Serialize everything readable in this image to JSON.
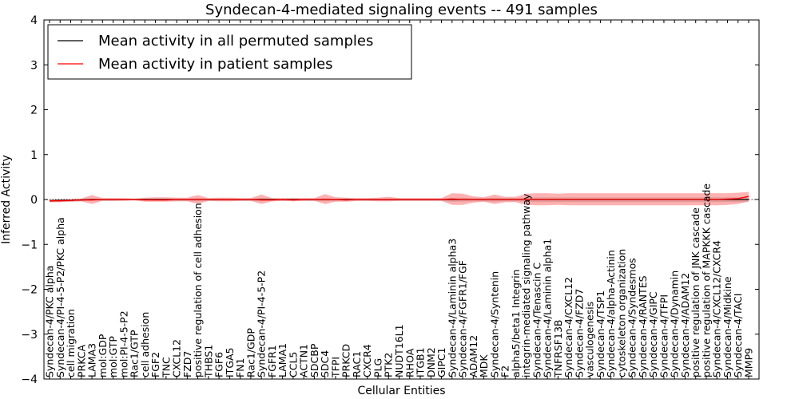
{
  "chart_data": {
    "type": "line",
    "title": "Syndecan-4-mediated signaling events -- 491 samples",
    "xlabel": "Cellular Entities",
    "ylabel": "Inferred Activity",
    "ylim": [
      -4,
      4
    ],
    "yticks": [
      -4,
      -3,
      -2,
      -1,
      0,
      1,
      2,
      3,
      4
    ],
    "ytick_labels": [
      "−4",
      "−3",
      "−2",
      "−1",
      "0",
      "1",
      "2",
      "3",
      "4"
    ],
    "grid": false,
    "legend": {
      "location": "top-left",
      "entries": [
        {
          "label": "Mean activity in all permuted samples",
          "color": "#000000"
        },
        {
          "label": "Mean activity in patient samples",
          "color": "#ff0000"
        }
      ]
    },
    "categories": [
      "Syndecan-4/PKC alpha",
      "Syndecan-4/PI-4-5-P2/PKC alpha",
      "cell migration",
      "PRKCA",
      "LAMA3",
      "mol:GDP",
      "mol:GTP",
      "mol:PI-4-5-P2",
      "Rac1/GTP",
      "cell adhesion",
      "FGF2",
      "TNC",
      "CXCL12",
      "FZD7",
      "positive regulation of cell adhesion",
      "THBS1",
      "FGF6",
      "ITGA5",
      "FN1",
      "Rac1/GDP",
      "Syndecan-4/PI-4-5-P2",
      "FGFR1",
      "LAMA1",
      "CCL5",
      "ACTN1",
      "SDCBP",
      "SDC4",
      "TFPI",
      "PRKCD",
      "RAC1",
      "CXCR4",
      "PLG",
      "PTK2",
      "NUDT16L1",
      "RHOA",
      "ITGB1",
      "DNM2",
      "GIPC1",
      "Syndecan-4/Laminin alpha3",
      "Syndecan-4/FGFR1/FGF",
      "ADAM12",
      "MDK",
      "Syndecan-4/Syntenin",
      "F2",
      "alpha5/beta1 Integrin",
      "integrin-mediated signaling pathway",
      "Syndecan-4/Tenascin C",
      "Syndecan-4/Laminin alpha1",
      "TNFRSF13B",
      "Syndecan-4/CXCL12",
      "Syndecan-4/FZD7",
      "vasculogenesis",
      "Syndecan-4/TSP1",
      "Syndecan-4/alpha-Actinin",
      "cytoskeleton organization",
      "Syndecan-4/Syndesmos",
      "Syndecan-4/RANTES",
      "Syndecan-4/GIPC",
      "Syndecan-4/TFPI",
      "Syndecan-4/Dynamin",
      "Syndecan-4/ADAM12",
      "positive regulation of JNK cascade",
      "positive regulation of MAPKKK cascade",
      "Syndecan-4/CXCL12/CXCR4",
      "Syndecan-4/Midkine",
      "Syndecan-4/TACI",
      "MMP9"
    ],
    "series": [
      {
        "name": "Mean activity in all permuted samples",
        "color": "#000000",
        "values": [
          -0.03,
          -0.02,
          -0.02,
          -0.01,
          0,
          0,
          0,
          0,
          0,
          0,
          0,
          0,
          0,
          0,
          0,
          0,
          0,
          0,
          0,
          0,
          0,
          0,
          0,
          0,
          0,
          0,
          0,
          0,
          0,
          0,
          0,
          0,
          0,
          0,
          0,
          0,
          0,
          0,
          0,
          0,
          0,
          0,
          0,
          0,
          0,
          0,
          0,
          0,
          0,
          0,
          0,
          0,
          0,
          0,
          0,
          0,
          0,
          0,
          0,
          0,
          0,
          0,
          0,
          0,
          0,
          0,
          0
        ],
        "band_lower": [
          -0.06,
          -0.05,
          -0.05,
          -0.04,
          -0.03,
          -0.03,
          -0.03,
          -0.02,
          -0.02,
          -0.02,
          -0.03,
          -0.03,
          -0.03,
          -0.03,
          -0.04,
          -0.03,
          -0.03,
          -0.03,
          -0.03,
          -0.03,
          -0.04,
          -0.03,
          -0.03,
          -0.03,
          -0.03,
          -0.03,
          -0.04,
          -0.03,
          -0.03,
          -0.03,
          -0.03,
          -0.03,
          -0.03,
          -0.03,
          -0.03,
          -0.03,
          -0.03,
          -0.03,
          -0.05,
          -0.05,
          -0.04,
          -0.04,
          -0.05,
          -0.04,
          -0.04,
          -0.05,
          -0.06,
          -0.06,
          -0.06,
          -0.06,
          -0.06,
          -0.06,
          -0.06,
          -0.06,
          -0.06,
          -0.06,
          -0.06,
          -0.06,
          -0.06,
          -0.06,
          -0.06,
          -0.06,
          -0.06,
          -0.06,
          -0.06,
          -0.06,
          -0.06
        ],
        "band_upper": [
          0,
          0.01,
          0.01,
          0.02,
          0.02,
          0.02,
          0.02,
          0.02,
          0.02,
          0.02,
          0.02,
          0.02,
          0.02,
          0.02,
          0.03,
          0.02,
          0.02,
          0.02,
          0.02,
          0.02,
          0.03,
          0.02,
          0.02,
          0.02,
          0.02,
          0.02,
          0.03,
          0.02,
          0.02,
          0.02,
          0.02,
          0.02,
          0.02,
          0.02,
          0.02,
          0.02,
          0.02,
          0.02,
          0.04,
          0.04,
          0.03,
          0.03,
          0.04,
          0.03,
          0.03,
          0.04,
          0.05,
          0.05,
          0.05,
          0.05,
          0.05,
          0.05,
          0.05,
          0.05,
          0.05,
          0.05,
          0.05,
          0.05,
          0.05,
          0.05,
          0.05,
          0.05,
          0.05,
          0.05,
          0.05,
          0.05,
          0.05
        ]
      },
      {
        "name": "Mean activity in patient samples",
        "color": "#ff0000",
        "values": [
          -0.03,
          -0.03,
          -0.02,
          -0.01,
          -0.01,
          0,
          0,
          0,
          0,
          -0.01,
          -0.01,
          -0.01,
          0,
          0,
          0,
          0,
          0,
          0,
          0,
          0,
          -0.01,
          -0.01,
          0,
          -0.01,
          0,
          0,
          0,
          0,
          -0.01,
          0,
          0,
          0,
          0,
          0,
          0,
          0,
          0,
          0,
          0.01,
          0,
          0,
          0,
          0,
          0,
          0,
          0,
          0,
          0,
          0,
          0,
          0,
          0,
          0,
          0,
          0,
          0,
          0,
          0,
          0,
          0,
          0,
          0,
          0,
          0,
          0.01,
          0.02,
          0.07
        ],
        "band_lower": [
          -0.06,
          -0.06,
          -0.05,
          -0.04,
          -0.1,
          -0.03,
          -0.03,
          -0.03,
          -0.02,
          -0.05,
          -0.05,
          -0.05,
          -0.04,
          -0.04,
          -0.1,
          -0.03,
          -0.04,
          -0.04,
          -0.03,
          -0.03,
          -0.1,
          -0.04,
          -0.03,
          -0.04,
          -0.03,
          -0.03,
          -0.1,
          -0.05,
          -0.05,
          -0.03,
          -0.03,
          -0.04,
          -0.04,
          -0.03,
          -0.03,
          -0.03,
          -0.03,
          -0.03,
          -0.12,
          -0.12,
          -0.07,
          -0.05,
          -0.1,
          -0.06,
          -0.06,
          -0.12,
          -0.13,
          -0.13,
          -0.12,
          -0.13,
          -0.13,
          -0.13,
          -0.13,
          -0.13,
          -0.13,
          -0.13,
          -0.13,
          -0.13,
          -0.13,
          -0.13,
          -0.13,
          -0.13,
          -0.13,
          -0.13,
          -0.12,
          -0.1,
          -0.04
        ],
        "band_upper": [
          0,
          0,
          0.01,
          0.02,
          0.1,
          0.03,
          0.03,
          0.03,
          0.02,
          0.04,
          0.05,
          0.05,
          0.04,
          0.04,
          0.1,
          0.03,
          0.04,
          0.04,
          0.03,
          0.03,
          0.11,
          0.03,
          0.03,
          0.03,
          0.03,
          0.03,
          0.12,
          0.05,
          0.04,
          0.03,
          0.03,
          0.04,
          0.06,
          0.03,
          0.03,
          0.03,
          0.03,
          0.03,
          0.14,
          0.13,
          0.07,
          0.05,
          0.11,
          0.06,
          0.06,
          0.13,
          0.14,
          0.14,
          0.13,
          0.14,
          0.14,
          0.14,
          0.14,
          0.14,
          0.14,
          0.14,
          0.14,
          0.14,
          0.14,
          0.14,
          0.14,
          0.14,
          0.14,
          0.14,
          0.14,
          0.15,
          0.17
        ]
      }
    ]
  }
}
